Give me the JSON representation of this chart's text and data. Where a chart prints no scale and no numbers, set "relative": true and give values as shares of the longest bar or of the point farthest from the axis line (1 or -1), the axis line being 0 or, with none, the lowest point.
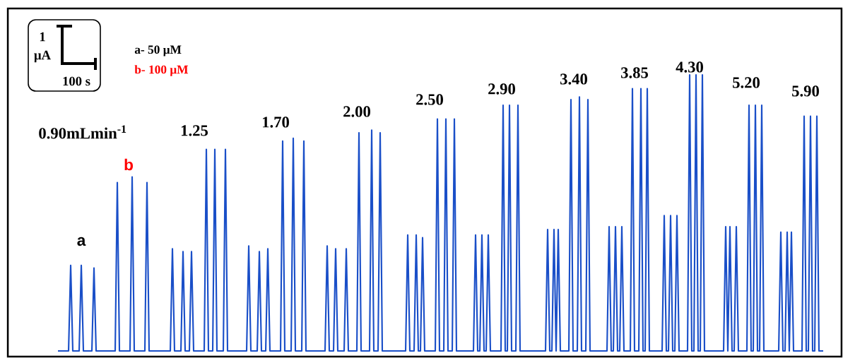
{
  "chart_data": {
    "type": "line",
    "relative": true,
    "color": "#1a4fc8",
    "annotations": [
      "a- 50 μM",
      "b- 100 μM",
      "1",
      "μA",
      "100 s",
      "0.90mLmin$^{-1}$",
      "1.25",
      "1.70",
      "2.00",
      "2.50",
      "2.90",
      "3.40",
      "3.85",
      "4.30",
      "5.20",
      "5.90",
      "a",
      "b"
    ],
    "categories": [
      null,
      null,
      null,
      null,
      null,
      null,
      null,
      null,
      null,
      null,
      null,
      null,
      null,
      null,
      null,
      null,
      null,
      null,
      null,
      null,
      null,
      null,
      null,
      null,
      null,
      null,
      null,
      null,
      null,
      null,
      null,
      null,
      null,
      null,
      null,
      null,
      null,
      null,
      null,
      null,
      null,
      null,
      null,
      null,
      null,
      null,
      null,
      null,
      null,
      null,
      null,
      null,
      null,
      null,
      null,
      null,
      null,
      null,
      null,
      null,
      null,
      null,
      null,
      null,
      null,
      null,
      null,
      null,
      null,
      null,
      null,
      null,
      null,
      null,
      null,
      null,
      null,
      null,
      null,
      null,
      null,
      null,
      null,
      null,
      null,
      null,
      null,
      null,
      null,
      null,
      null,
      null,
      null,
      null,
      null,
      null,
      null,
      null,
      null,
      null,
      null,
      null,
      null,
      null,
      null,
      null,
      null,
      null,
      null,
      null,
      null,
      null,
      null,
      null,
      null,
      null,
      null,
      null,
      null,
      null,
      null,
      null,
      null,
      null,
      null,
      null,
      null,
      null,
      null,
      null,
      null,
      null,
      null,
      null,
      null,
      null,
      null,
      null,
      null,
      null,
      null,
      null,
      null,
      null,
      null,
      null,
      null,
      null,
      null,
      null,
      null,
      null,
      null,
      null,
      null,
      null,
      null,
      null,
      null,
      null,
      null,
      null,
      null,
      null,
      null,
      null,
      null,
      null,
      null,
      null,
      null,
      null,
      null,
      null,
      null,
      null,
      null,
      null,
      null,
      null,
      null,
      null,
      null,
      null,
      null,
      null,
      null,
      null,
      null,
      null,
      null,
      null,
      null,
      null,
      null,
      null,
      null,
      null,
      null,
      null,
      null,
      null,
      null,
      null,
      null,
      null,
      null,
      null,
      null,
      null,
      null,
      null,
      null,
      null,
      null,
      null,
      null,
      null,
      null,
      null,
      null,
      null,
      null,
      null,
      null,
      null,
      null,
      null,
      null,
      null,
      null,
      null,
      null,
      null,
      null,
      null,
      null,
      null,
      null,
      null,
      null,
      null,
      null,
      null,
      null,
      null,
      null,
      null,
      null,
      null,
      null,
      null,
      null,
      null,
      null,
      null,
      null,
      null,
      null,
      null,
      null,
      null,
      null,
      null,
      null,
      null,
      null,
      null,
      null,
      null,
      null,
      null,
      null,
      null,
      null,
      null,
      null,
      null,
      null,
      null,
      null,
      null,
      null,
      null,
      null,
      null,
      null,
      null,
      null,
      null,
      null,
      null,
      null,
      null,
      null,
      null,
      null,
      null,
      null,
      null,
      null,
      null,
      null,
      null,
      null,
      null,
      null,
      null,
      null,
      null,
      null,
      null,
      null,
      null,
      null,
      null,
      null,
      null,
      null,
      null,
      null,
      null,
      null,
      null,
      null,
      null,
      null,
      null,
      null,
      null,
      null,
      null,
      null,
      null,
      null,
      null,
      null,
      null,
      null,
      null,
      null,
      null,
      null,
      null,
      null,
      null,
      null,
      null,
      null,
      null,
      null,
      null,
      null,
      null,
      null,
      null,
      null,
      null,
      null,
      null,
      null,
      null
    ],
    "values": [
      0,
      0,
      0,
      0,
      0,
      0,
      0.31,
      0,
      0,
      0,
      0,
      0.31,
      0,
      0,
      0,
      0,
      0,
      0.3,
      0,
      0,
      0,
      0,
      0,
      0,
      0,
      0,
      0,
      0,
      0.61,
      0,
      0,
      0,
      0,
      0,
      0,
      0.63,
      0,
      0,
      0,
      0,
      0,
      0,
      0.61,
      0,
      0,
      0,
      0,
      0,
      0,
      0,
      0,
      0,
      0,
      0,
      0.37,
      0,
      0,
      0,
      0,
      0.36,
      0,
      0,
      0,
      0.36,
      0,
      0,
      0,
      0,
      0,
      0,
      0.73,
      0,
      0,
      0,
      0.73,
      0,
      0,
      0,
      0,
      0.73,
      0,
      0,
      0,
      0,
      0,
      0,
      0,
      0,
      0,
      0,
      0.38,
      0,
      0,
      0,
      0,
      0.36,
      0,
      0,
      0,
      0.37,
      0,
      0,
      0,
      0,
      0,
      0,
      0.76,
      0,
      0,
      0,
      0,
      0.77,
      0,
      0,
      0,
      0,
      0.76,
      0,
      0,
      0,
      0,
      0,
      0,
      0,
      0,
      0,
      0,
      0.38,
      0,
      0,
      0,
      0.37,
      0,
      0,
      0,
      0,
      0.37,
      0,
      0,
      0,
      0,
      0,
      0.79,
      0,
      0,
      0,
      0,
      0,
      0.8,
      0,
      0,
      0,
      0.79,
      0,
      0,
      0,
      0,
      0,
      0,
      0,
      0,
      0,
      0,
      0,
      0,
      0.42,
      0,
      0,
      0,
      0.42,
      0,
      0,
      0.41,
      0,
      0,
      0,
      0,
      0,
      0,
      0.84,
      0,
      0,
      0,
      0.84,
      0,
      0,
      0,
      0.84,
      0,
      0,
      0,
      0,
      0,
      0,
      0,
      0,
      0,
      0.42,
      0,
      0,
      0.42,
      0,
      0,
      0.42,
      0,
      0,
      0,
      0,
      0,
      0,
      0.89,
      0,
      0,
      0.89,
      0,
      0,
      0,
      0.89,
      0,
      0,
      0,
      0,
      0,
      0,
      0,
      0,
      0,
      0,
      0,
      0,
      0,
      0.44,
      0,
      0,
      0.44,
      0,
      0.44,
      0,
      0,
      0,
      0,
      0,
      0.91,
      0,
      0,
      0,
      0.92,
      0,
      0,
      0,
      0.91,
      0,
      0,
      0,
      0,
      0,
      0,
      0,
      0,
      0,
      0.45,
      0,
      0,
      0.45,
      0,
      0,
      0.45,
      0,
      0,
      0,
      0,
      0.95,
      0,
      0,
      0,
      0.95,
      0,
      0,
      0.95,
      0,
      0,
      0,
      0,
      0,
      0,
      0,
      0.49,
      0,
      0,
      0.49,
      0,
      0,
      0.49,
      0,
      0,
      0,
      0,
      0,
      1,
      0,
      0,
      1,
      0,
      0,
      1,
      0,
      0,
      0,
      0,
      0,
      0,
      0,
      0,
      0,
      0,
      0.45,
      0,
      0.45,
      0,
      0,
      0.45,
      0,
      0,
      0,
      0,
      0,
      0.89,
      0,
      0,
      0.89,
      0,
      0,
      0.89,
      0,
      0,
      0,
      0,
      0,
      0,
      0,
      0,
      0.43,
      0,
      0,
      0.43,
      0,
      0.43,
      0,
      0,
      0,
      0,
      0,
      0.85,
      0,
      0,
      0.85,
      0,
      0,
      0.85,
      0,
      0,
      0
    ]
  }
}
